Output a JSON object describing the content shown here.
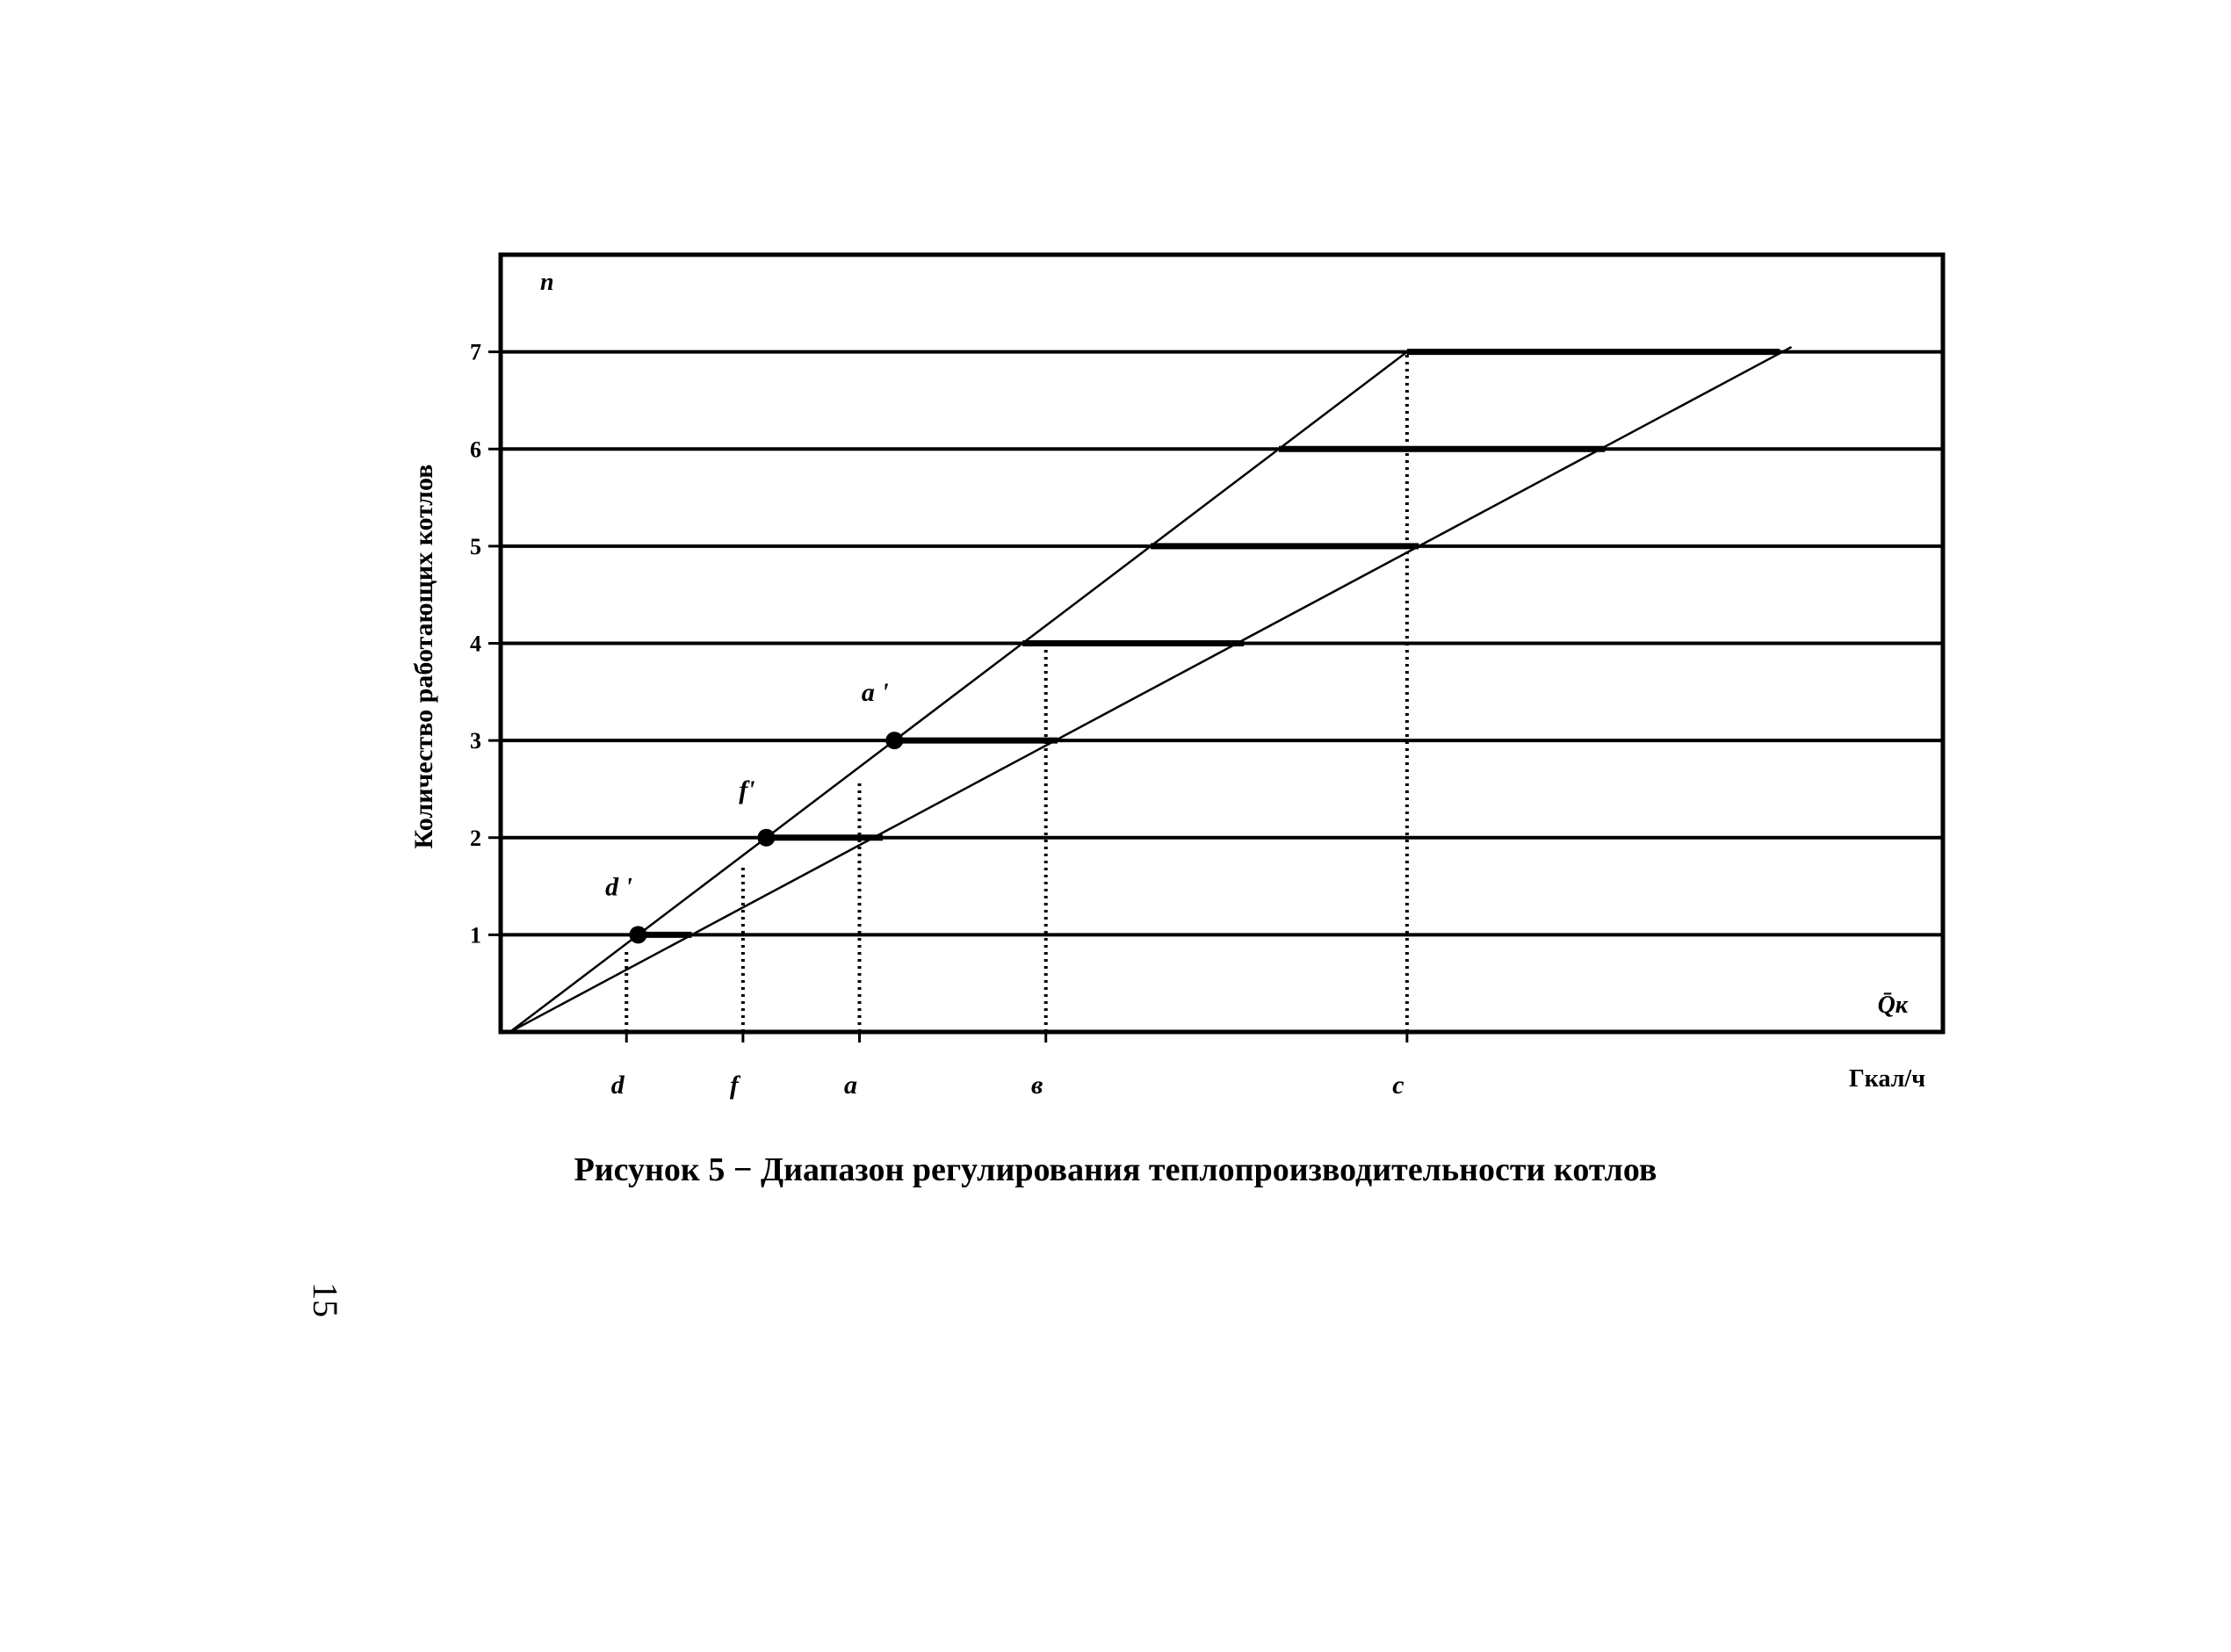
{
  "chart_data": {
    "type": "line",
    "title": "",
    "xlabel": "Гкал/ч",
    "ylabel": "Количество работающих котлов",
    "corner_y_label": "n",
    "x_axis_symbol": "Q̄к",
    "y_ticks": [
      "1",
      "2",
      "3",
      "4",
      "5",
      "6",
      "7"
    ],
    "ylim": [
      0,
      8
    ],
    "x_categories": [
      {
        "name": "d",
        "x": 1.0
      },
      {
        "name": "f",
        "x": 2.0
      },
      {
        "name": "a",
        "x": 3.0
      },
      {
        "name": "в",
        "x": 4.6
      },
      {
        "name": "c",
        "x": 7.7
      }
    ],
    "xlim": [
      -0.08,
      12.3
    ],
    "series": [
      {
        "points": [
          [
            0,
            0
          ],
          [
            7.7,
            7
          ]
        ]
      },
      {
        "points": [
          [
            0,
            0
          ],
          [
            11.0,
            7.05
          ]
        ]
      }
    ],
    "ranges": [
      {
        "n": 1,
        "from": 1.1,
        "to": 1.56
      },
      {
        "n": 2,
        "from": 2.2,
        "to": 3.2
      },
      {
        "n": 3,
        "from": 3.3,
        "to": 4.7
      },
      {
        "n": 4,
        "from": 4.4,
        "to": 6.3
      },
      {
        "n": 5,
        "from": 5.5,
        "to": 7.8
      },
      {
        "n": 6,
        "from": 6.6,
        "to": 9.4
      },
      {
        "n": 7,
        "from": 7.7,
        "to": 10.9
      }
    ],
    "marked_points": [
      {
        "label": "d '",
        "x": 1.1,
        "y": 1
      },
      {
        "label": "f'",
        "x": 2.2,
        "y": 2
      },
      {
        "label": "a '",
        "x": 3.3,
        "y": 3
      }
    ],
    "drop_lines": [
      {
        "x": 1.0,
        "y": 0.85
      },
      {
        "x": 2.0,
        "y": 1.7
      },
      {
        "x": 3.0,
        "y": 2.6
      },
      {
        "x": 4.6,
        "y": 4
      },
      {
        "x": 7.7,
        "y": 7
      }
    ],
    "grid": true
  },
  "caption": "Рисунок 5 − Диапазон регулирования теплопроизводительности котлов",
  "page_number": "15"
}
